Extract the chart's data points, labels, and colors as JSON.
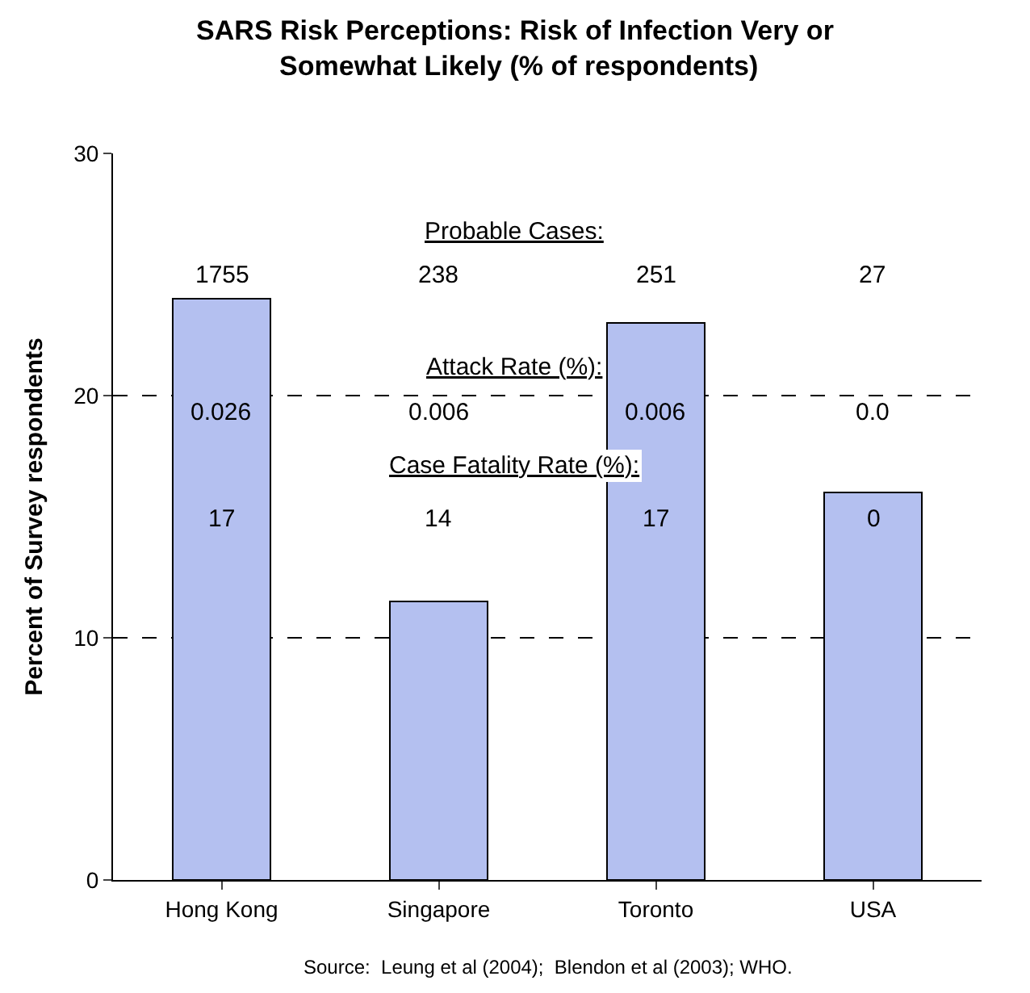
{
  "chart_data": {
    "type": "bar",
    "title": "SARS Risk Perceptions: Risk of Infection Very or Somewhat Likely (% of respondents)",
    "ylabel": "Percent of Survey respondents",
    "categories": [
      "Hong Kong",
      "Singapore",
      "Toronto",
      "USA"
    ],
    "values": [
      24,
      11.5,
      23,
      16
    ],
    "color": "#b4c0f0",
    "ylim": [
      0,
      30
    ],
    "yticks": [
      0,
      10,
      20,
      30
    ],
    "grid": "y",
    "annotations": [
      "Probable Cases:",
      "1755",
      "238",
      "251",
      "27",
      "Attack Rate (%):",
      "0.026",
      "0.006",
      "0.006",
      "0.0",
      "Case Fatality Rate (%):",
      "17",
      "14",
      "17",
      "0",
      "Source:  Leung et al (2004);  Blendon et al (2003); WHO."
    ]
  }
}
